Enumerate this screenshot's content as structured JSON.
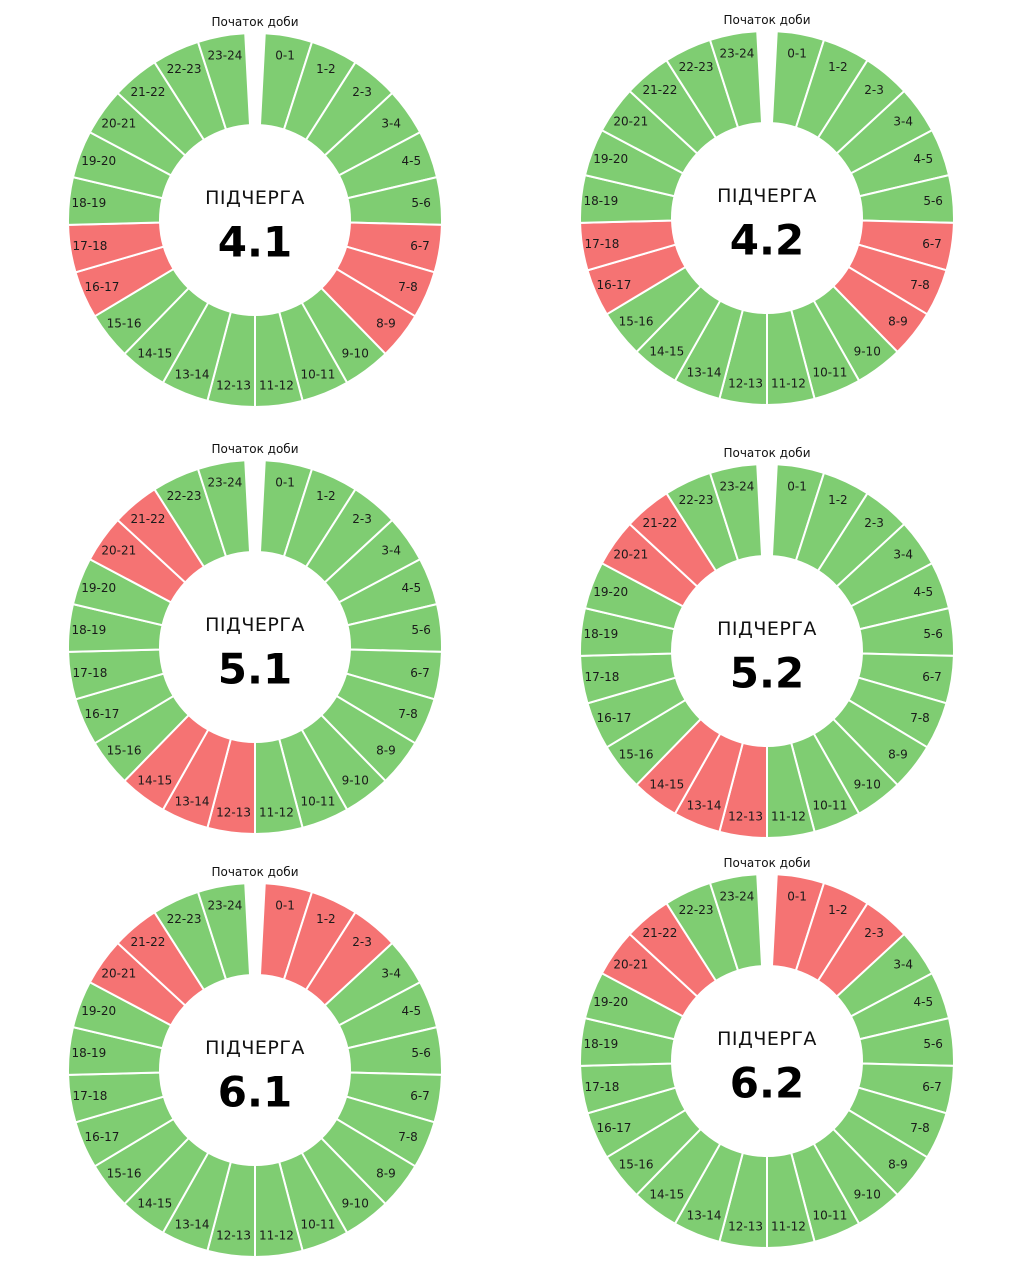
{
  "colors": {
    "on": "#7fcd72",
    "off": "#f57373",
    "gap": "#ffffff"
  },
  "chart_data": [
    {
      "type": "donut",
      "title": "4.1",
      "center_label": "ПІДЧЕРГА",
      "start_label": "Початок доби",
      "categories": [
        "0-1",
        "1-2",
        "2-3",
        "3-4",
        "4-5",
        "5-6",
        "6-7",
        "7-8",
        "8-9",
        "9-10",
        "10-11",
        "11-12",
        "12-13",
        "13-14",
        "14-15",
        "15-16",
        "16-17",
        "17-18",
        "18-19",
        "19-20",
        "20-21",
        "21-22",
        "22-23",
        "23-24"
      ],
      "values": [
        1,
        1,
        1,
        1,
        1,
        1,
        1,
        1,
        1,
        1,
        1,
        1,
        1,
        1,
        1,
        1,
        1,
        1,
        1,
        1,
        1,
        1,
        1,
        1
      ],
      "off_hours": [
        "6-7",
        "7-8",
        "8-9",
        "16-17",
        "17-18"
      ]
    },
    {
      "type": "donut",
      "title": "4.2",
      "center_label": "ПІДЧЕРГА",
      "start_label": "Початок доби",
      "categories": [
        "0-1",
        "1-2",
        "2-3",
        "3-4",
        "4-5",
        "5-6",
        "6-7",
        "7-8",
        "8-9",
        "9-10",
        "10-11",
        "11-12",
        "12-13",
        "13-14",
        "14-15",
        "15-16",
        "16-17",
        "17-18",
        "18-19",
        "19-20",
        "20-21",
        "21-22",
        "22-23",
        "23-24"
      ],
      "values": [
        1,
        1,
        1,
        1,
        1,
        1,
        1,
        1,
        1,
        1,
        1,
        1,
        1,
        1,
        1,
        1,
        1,
        1,
        1,
        1,
        1,
        1,
        1,
        1
      ],
      "off_hours": [
        "6-7",
        "7-8",
        "8-9",
        "16-17",
        "17-18"
      ]
    },
    {
      "type": "donut",
      "title": "5.1",
      "center_label": "ПІДЧЕРГА",
      "start_label": "Початок доби",
      "categories": [
        "0-1",
        "1-2",
        "2-3",
        "3-4",
        "4-5",
        "5-6",
        "6-7",
        "7-8",
        "8-9",
        "9-10",
        "10-11",
        "11-12",
        "12-13",
        "13-14",
        "14-15",
        "15-16",
        "16-17",
        "17-18",
        "18-19",
        "19-20",
        "20-21",
        "21-22",
        "22-23",
        "23-24"
      ],
      "values": [
        1,
        1,
        1,
        1,
        1,
        1,
        1,
        1,
        1,
        1,
        1,
        1,
        1,
        1,
        1,
        1,
        1,
        1,
        1,
        1,
        1,
        1,
        1,
        1
      ],
      "off_hours": [
        "12-13",
        "13-14",
        "14-15",
        "20-21",
        "21-22"
      ]
    },
    {
      "type": "donut",
      "title": "5.2",
      "center_label": "ПІДЧЕРГА",
      "start_label": "Початок доби",
      "categories": [
        "0-1",
        "1-2",
        "2-3",
        "3-4",
        "4-5",
        "5-6",
        "6-7",
        "7-8",
        "8-9",
        "9-10",
        "10-11",
        "11-12",
        "12-13",
        "13-14",
        "14-15",
        "15-16",
        "16-17",
        "17-18",
        "18-19",
        "19-20",
        "20-21",
        "21-22",
        "22-23",
        "23-24"
      ],
      "values": [
        1,
        1,
        1,
        1,
        1,
        1,
        1,
        1,
        1,
        1,
        1,
        1,
        1,
        1,
        1,
        1,
        1,
        1,
        1,
        1,
        1,
        1,
        1,
        1
      ],
      "off_hours": [
        "12-13",
        "13-14",
        "14-15",
        "20-21",
        "21-22"
      ]
    },
    {
      "type": "donut",
      "title": "6.1",
      "center_label": "ПІДЧЕРГА",
      "start_label": "Початок доби",
      "categories": [
        "0-1",
        "1-2",
        "2-3",
        "3-4",
        "4-5",
        "5-6",
        "6-7",
        "7-8",
        "8-9",
        "9-10",
        "10-11",
        "11-12",
        "12-13",
        "13-14",
        "14-15",
        "15-16",
        "16-17",
        "17-18",
        "18-19",
        "19-20",
        "20-21",
        "21-22",
        "22-23",
        "23-24"
      ],
      "values": [
        1,
        1,
        1,
        1,
        1,
        1,
        1,
        1,
        1,
        1,
        1,
        1,
        1,
        1,
        1,
        1,
        1,
        1,
        1,
        1,
        1,
        1,
        1,
        1
      ],
      "off_hours": [
        "0-1",
        "1-2",
        "2-3",
        "20-21",
        "21-22"
      ]
    },
    {
      "type": "donut",
      "title": "6.2",
      "center_label": "ПІДЧЕРГА",
      "start_label": "Початок доби",
      "categories": [
        "0-1",
        "1-2",
        "2-3",
        "3-4",
        "4-5",
        "5-6",
        "6-7",
        "7-8",
        "8-9",
        "9-10",
        "10-11",
        "11-12",
        "12-13",
        "13-14",
        "14-15",
        "15-16",
        "16-17",
        "17-18",
        "18-19",
        "19-20",
        "20-21",
        "21-22",
        "22-23",
        "23-24"
      ],
      "values": [
        1,
        1,
        1,
        1,
        1,
        1,
        1,
        1,
        1,
        1,
        1,
        1,
        1,
        1,
        1,
        1,
        1,
        1,
        1,
        1,
        1,
        1,
        1,
        1
      ],
      "off_hours": [
        "0-1",
        "1-2",
        "2-3",
        "20-21",
        "21-22"
      ]
    }
  ]
}
